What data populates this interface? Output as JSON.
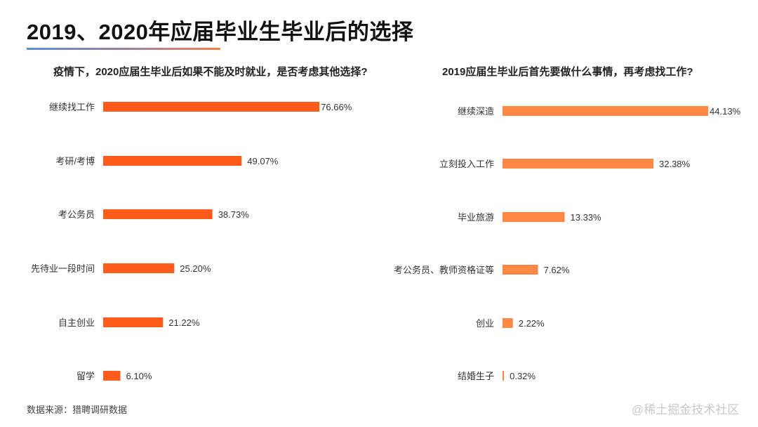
{
  "title": "2019、2020年应届毕业生毕业后的选择",
  "source": "数据来源：猎聘调研数据",
  "watermark": "@稀土掘金技术社区",
  "chart_data": [
    {
      "type": "bar",
      "orientation": "horizontal",
      "title": "疫情下，2020应届生毕业后如果不能及时就业，是否考虑其他选择?",
      "categories": [
        "继续找工作",
        "考研/考博",
        "考公务员",
        "先待业一段时间",
        "自主创业",
        "留学"
      ],
      "values": [
        76.66,
        49.07,
        38.73,
        25.2,
        21.22,
        6.1
      ],
      "data_labels": [
        "76.66%",
        "49.07%",
        "38.73%",
        "25.20%",
        "21.22%",
        "6.10%"
      ],
      "unit": "%",
      "color": "#FF5B1A",
      "grid": false
    },
    {
      "type": "bar",
      "orientation": "horizontal",
      "title": "2019应届生毕业后首先要做什么事情，再考虑找工作?",
      "categories": [
        "继续深造",
        "立刻投入工作",
        "毕业旅游",
        "考公务员、教师资格证等",
        "创业",
        "结婚生子"
      ],
      "values": [
        44.13,
        32.38,
        13.33,
        7.62,
        2.22,
        0.32
      ],
      "data_labels": [
        "44.13%",
        "32.38%",
        "13.33%",
        "7.62%",
        "2.22%",
        "0.32%"
      ],
      "unit": "%",
      "color": "#FF8847",
      "grid": false
    }
  ]
}
